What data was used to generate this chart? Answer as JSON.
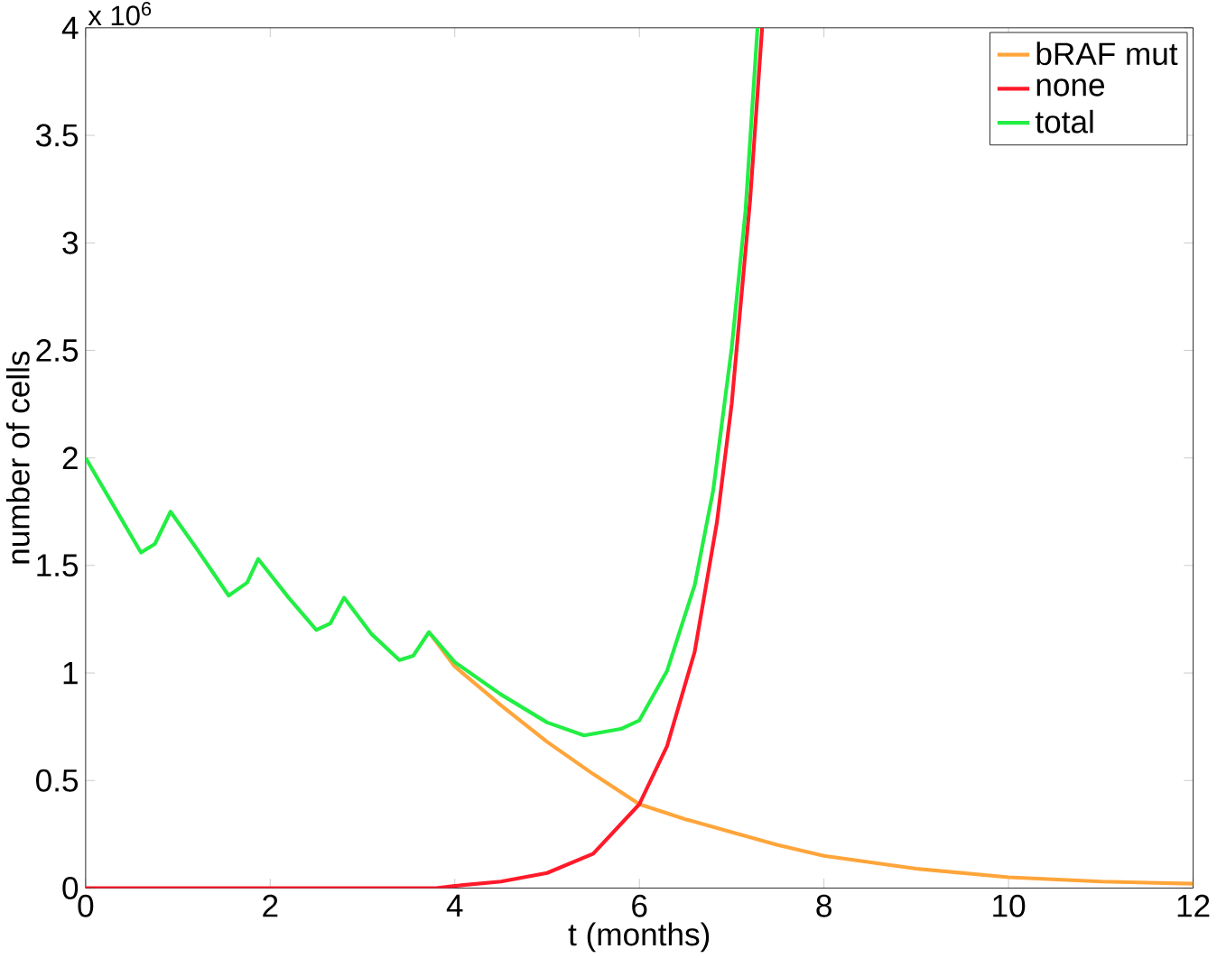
{
  "chart_data": {
    "type": "line",
    "xlabel": "t (months)",
    "ylabel": "number of cells",
    "annotations": [
      "x 10$^{6}$"
    ],
    "xlim": [
      0,
      12
    ],
    "ylim": [
      0,
      4
    ],
    "xticks": [
      0,
      2,
      4,
      6,
      8,
      10,
      12
    ],
    "yticks": [
      0,
      0.5,
      1,
      1.5,
      2,
      2.5,
      3,
      3.5,
      4
    ],
    "grid": false,
    "legend": "top right",
    "marker": "none",
    "line_style": "solid",
    "series": [
      {
        "name": "bRAF mut",
        "color": "#ffa53a",
        "x": [
          3.72,
          4.0,
          4.5,
          5.0,
          5.5,
          6.0,
          6.5,
          7.0,
          7.5,
          8.0,
          9.0,
          10.0,
          11.0,
          12.0
        ],
        "values": [
          1.19,
          1.03,
          0.85,
          0.68,
          0.53,
          0.39,
          0.32,
          0.26,
          0.2,
          0.15,
          0.09,
          0.05,
          0.03,
          0.02
        ]
      },
      {
        "name": "none",
        "color": "#ff1a2a",
        "x": [
          0,
          3.8,
          4.0,
          4.5,
          5.0,
          5.5,
          6.0,
          6.3,
          6.6,
          6.84,
          7.0,
          7.2,
          7.33
        ],
        "values": [
          0,
          0,
          0.01,
          0.03,
          0.07,
          0.16,
          0.39,
          0.66,
          1.1,
          1.7,
          2.25,
          3.2,
          4.0
        ]
      },
      {
        "name": "total",
        "color": "#22ee44",
        "x": [
          0,
          0.3,
          0.6,
          0.75,
          0.92,
          1.2,
          1.55,
          1.75,
          1.87,
          2.2,
          2.5,
          2.65,
          2.8,
          3.1,
          3.4,
          3.55,
          3.72,
          4.0,
          4.5,
          5.0,
          5.4,
          5.8,
          6.0,
          6.3,
          6.6,
          6.8,
          7.0,
          7.15,
          7.28
        ],
        "values": [
          2.0,
          1.78,
          1.56,
          1.6,
          1.75,
          1.58,
          1.36,
          1.42,
          1.53,
          1.35,
          1.2,
          1.23,
          1.35,
          1.18,
          1.06,
          1.08,
          1.19,
          1.05,
          0.9,
          0.77,
          0.71,
          0.74,
          0.78,
          1.01,
          1.41,
          1.85,
          2.51,
          3.15,
          4.0
        ]
      }
    ]
  }
}
